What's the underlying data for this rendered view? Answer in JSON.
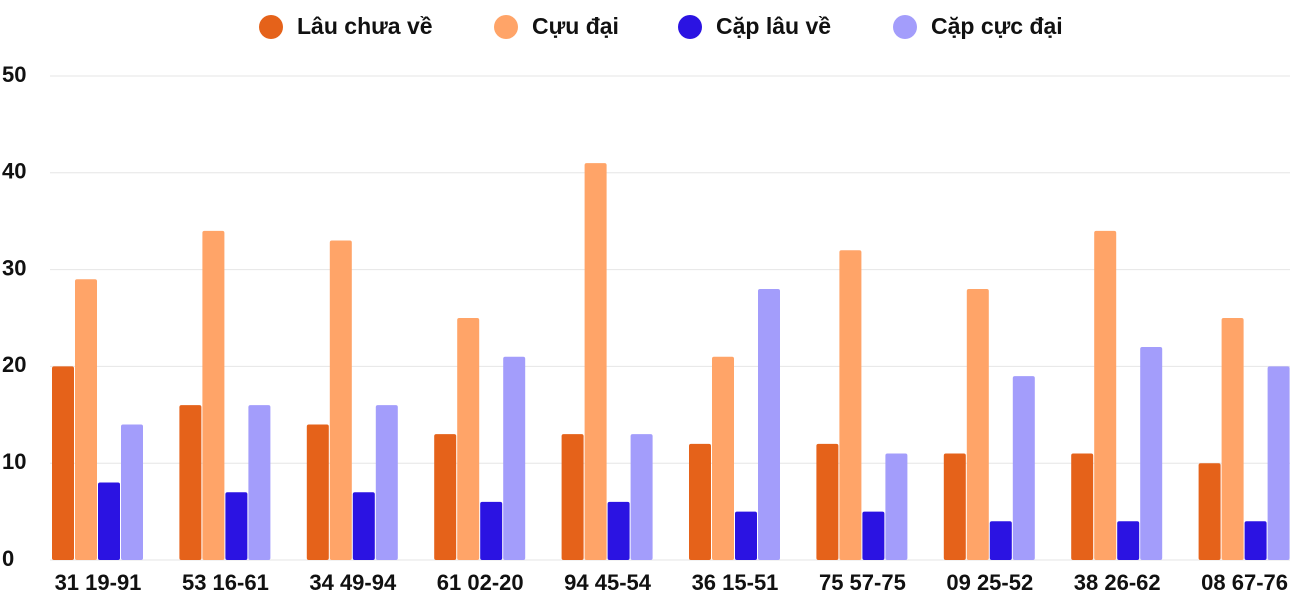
{
  "chart_data": {
    "type": "bar",
    "categories": [
      "31 19-91",
      "53 16-61",
      "34 49-94",
      "61 02-20",
      "94 45-54",
      "36 15-51",
      "75 57-75",
      "09 25-52",
      "38 26-62",
      "08 67-76"
    ],
    "series": [
      {
        "name": "Lâu chưa về",
        "color": "#e5621a",
        "values": [
          20,
          16,
          14,
          13,
          13,
          12,
          12,
          11,
          11,
          10
        ]
      },
      {
        "name": "Cựu đại",
        "color": "#ffa468",
        "values": [
          29,
          34,
          33,
          25,
          41,
          21,
          32,
          28,
          34,
          25
        ]
      },
      {
        "name": "Cặp lâu về",
        "color": "#2b13e2",
        "values": [
          8,
          7,
          7,
          6,
          6,
          5,
          5,
          4,
          4,
          4
        ]
      },
      {
        "name": "Cặp cực đại",
        "color": "#a39dfb",
        "values": [
          14,
          16,
          16,
          21,
          13,
          28,
          11,
          19,
          22,
          20
        ]
      }
    ],
    "ylim": [
      0,
      50
    ],
    "yticks": [
      0,
      10,
      20,
      30,
      40,
      50
    ],
    "grid": true,
    "legend": "top"
  }
}
